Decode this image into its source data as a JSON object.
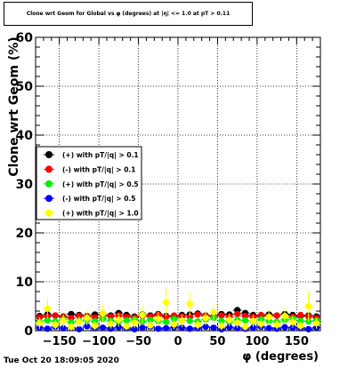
{
  "chart_data": {
    "type": "scatter",
    "title": "Clone wrt Geom for Global vs φ (degrees) at |η| <= 1.0 at pT > 0.11",
    "xlabel": "φ (degrees)",
    "ylabel": "Clone wrt Geom (%)",
    "xlim": [
      -180,
      180
    ],
    "ylim": [
      0,
      60
    ],
    "x_ticks": [
      -150,
      -100,
      -50,
      0,
      50,
      100,
      150
    ],
    "y_ticks": [
      0,
      10,
      20,
      30,
      40,
      50,
      60
    ],
    "grid": true,
    "legend_position": "left-middle",
    "series": [
      {
        "name": "(+) with pT/|q| > 0.1",
        "color": "#000000",
        "x": [
          -175,
          -165,
          -155,
          -145,
          -135,
          -125,
          -115,
          -105,
          -95,
          -85,
          -75,
          -65,
          -55,
          -45,
          -35,
          -25,
          -15,
          -5,
          5,
          15,
          25,
          35,
          45,
          55,
          65,
          75,
          85,
          95,
          105,
          115,
          125,
          135,
          145,
          155,
          165,
          175
        ],
        "y": [
          3.0,
          3.3,
          3.1,
          2.9,
          3.4,
          3.2,
          3.0,
          3.3,
          3.5,
          3.1,
          3.6,
          3.2,
          2.9,
          3.3,
          3.1,
          3.4,
          3.0,
          2.8,
          3.2,
          3.3,
          3.5,
          3.1,
          3.0,
          3.4,
          3.3,
          4.2,
          3.6,
          3.2,
          3.0,
          3.3,
          3.1,
          3.4,
          3.2,
          3.0,
          3.1,
          2.9
        ]
      },
      {
        "name": "(-) with pT/|q| > 0.1",
        "color": "#ff0000",
        "x": [
          -175,
          -165,
          -155,
          -145,
          -135,
          -125,
          -115,
          -105,
          -95,
          -85,
          -75,
          -65,
          -55,
          -45,
          -35,
          -25,
          -15,
          -5,
          5,
          15,
          25,
          35,
          45,
          55,
          65,
          75,
          85,
          95,
          105,
          115,
          125,
          135,
          145,
          155,
          165,
          175
        ],
        "y": [
          2.7,
          2.9,
          3.1,
          2.8,
          2.6,
          3.0,
          2.9,
          2.7,
          3.2,
          2.9,
          3.1,
          2.8,
          2.7,
          3.0,
          2.9,
          3.2,
          2.8,
          3.1,
          2.9,
          2.8,
          3.3,
          3.0,
          2.9,
          3.1,
          2.8,
          3.4,
          3.0,
          2.8,
          3.2,
          2.9,
          3.1,
          3.0,
          2.8,
          3.2,
          2.9,
          2.6
        ]
      },
      {
        "name": "(+) with pT/|q| > 0.5",
        "color": "#00ee00",
        "x": [
          -175,
          -165,
          -155,
          -145,
          -135,
          -125,
          -115,
          -105,
          -95,
          -85,
          -75,
          -65,
          -55,
          -45,
          -35,
          -25,
          -15,
          -5,
          5,
          15,
          25,
          35,
          45,
          55,
          65,
          75,
          85,
          95,
          105,
          115,
          125,
          135,
          145,
          155,
          165,
          175
        ],
        "y": [
          1.8,
          2.1,
          1.9,
          2.3,
          1.7,
          2.0,
          2.2,
          1.9,
          2.4,
          2.0,
          1.8,
          2.1,
          2.3,
          1.9,
          2.2,
          2.0,
          1.8,
          2.4,
          2.1,
          2.0,
          1.9,
          2.3,
          2.6,
          2.0,
          1.8,
          2.2,
          2.1,
          1.9,
          2.3,
          2.0,
          1.8,
          2.2,
          2.4,
          2.0,
          1.9,
          2.1
        ]
      },
      {
        "name": "(-) with pT/|q| > 0.5",
        "color": "#0000ff",
        "x": [
          -175,
          -165,
          -155,
          -145,
          -135,
          -125,
          -115,
          -105,
          -95,
          -85,
          -75,
          -65,
          -55,
          -45,
          -35,
          -25,
          -15,
          -5,
          5,
          15,
          25,
          35,
          45,
          55,
          65,
          75,
          85,
          95,
          105,
          115,
          125,
          135,
          145,
          155,
          165,
          175
        ],
        "y": [
          0.6,
          0.4,
          0.8,
          0.5,
          0.7,
          0.3,
          0.9,
          0.5,
          0.6,
          0.4,
          0.7,
          0.5,
          0.3,
          0.6,
          0.8,
          0.4,
          0.5,
          0.7,
          0.6,
          0.4,
          0.5,
          0.8,
          0.6,
          0.3,
          0.7,
          0.5,
          0.4,
          0.6,
          0.8,
          0.5,
          0.4,
          0.7,
          0.6,
          0.5,
          0.3,
          0.6
        ]
      },
      {
        "name": "(+) with pT/|q| > 1.0",
        "color": "#ffff00",
        "x": [
          -175,
          -165,
          -155,
          -145,
          -135,
          -125,
          -115,
          -105,
          -95,
          -85,
          -75,
          -65,
          -55,
          -45,
          -35,
          -25,
          -15,
          -5,
          5,
          15,
          25,
          35,
          45,
          55,
          65,
          75,
          85,
          95,
          105,
          115,
          125,
          135,
          145,
          155,
          165,
          175
        ],
        "y": [
          1.5,
          4.5,
          1.2,
          2.0,
          0.8,
          1.8,
          2.6,
          1.0,
          3.5,
          1.4,
          2.2,
          0.9,
          1.6,
          3.2,
          1.1,
          2.4,
          5.8,
          1.3,
          2.0,
          5.5,
          1.2,
          2.6,
          3.8,
          1.0,
          2.2,
          1.6,
          0.8,
          2.0,
          1.4,
          2.8,
          1.2,
          3.0,
          1.8,
          1.0,
          5.0,
          1.5
        ],
        "err": [
          1.2,
          2.0,
          1.0,
          1.3,
          0.9,
          1.1,
          1.5,
          0.9,
          1.8,
          1.0,
          1.4,
          0.8,
          1.1,
          1.8,
          1.0,
          1.5,
          2.8,
          1.0,
          1.3,
          2.4,
          1.0,
          1.5,
          1.9,
          0.9,
          1.3,
          1.1,
          0.8,
          1.2,
          1.0,
          1.6,
          1.0,
          1.6,
          1.2,
          0.9,
          3.2,
          1.1
        ]
      }
    ],
    "timestamp": "Tue Oct 20 18:09:05 2020"
  }
}
